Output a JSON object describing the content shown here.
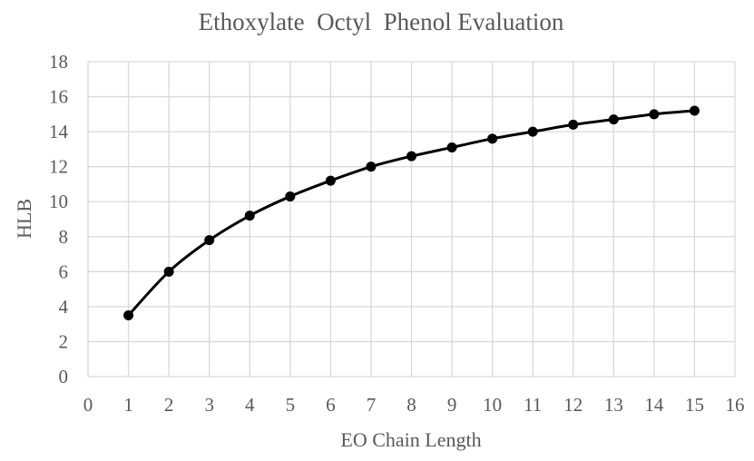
{
  "chart_data": {
    "type": "line",
    "title": "Ethoxylate  Octyl  Phenol Evaluation",
    "xlabel": "EO Chain Length",
    "ylabel": "HLB",
    "xlim": [
      0,
      16
    ],
    "ylim": [
      0,
      18
    ],
    "x_ticks": [
      0,
      1,
      2,
      3,
      4,
      5,
      6,
      7,
      8,
      9,
      10,
      11,
      12,
      13,
      14,
      15,
      16
    ],
    "y_ticks": [
      0,
      2,
      4,
      6,
      8,
      10,
      12,
      14,
      16,
      18
    ],
    "grid": true,
    "legend": "none",
    "series": [
      {
        "x": [
          1,
          2,
          3,
          4,
          5,
          6,
          7,
          8,
          9,
          10,
          11,
          12,
          13,
          14,
          15
        ],
        "y": [
          3.5,
          6.0,
          7.8,
          9.2,
          10.3,
          11.2,
          12.0,
          12.6,
          13.1,
          13.6,
          14.0,
          14.4,
          14.7,
          15.0,
          15.2
        ],
        "color": "#000000",
        "marker": "circle"
      }
    ]
  }
}
